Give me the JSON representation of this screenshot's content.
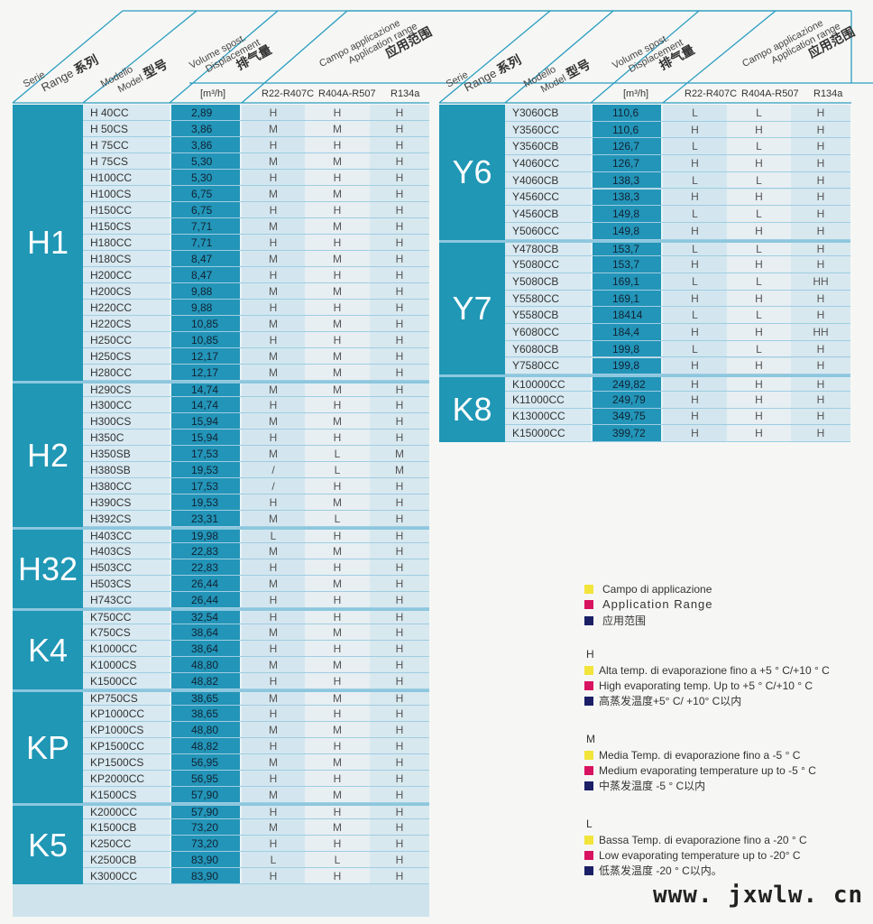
{
  "header": {
    "series": [
      "Serie",
      "Range",
      "系列"
    ],
    "model": [
      "Modello",
      "Model",
      "型号"
    ],
    "displacement": [
      "Volume spost.",
      "Displacement",
      "排气量"
    ],
    "application": [
      "Campo applicazione",
      "Application range",
      "应用范围"
    ],
    "unit": "[m³/h]",
    "refrigerants": [
      "R22-R407C",
      "R404A-R507",
      "R134a"
    ]
  },
  "left_table": [
    {
      "series": "H1",
      "rows": [
        [
          "H 40CC",
          "2,89",
          "H",
          "H",
          "H"
        ],
        [
          "H 50CS",
          "3,86",
          "M",
          "M",
          "H"
        ],
        [
          "H 75CC",
          "3,86",
          "H",
          "H",
          "H"
        ],
        [
          "H 75CS",
          "5,30",
          "M",
          "M",
          "H"
        ],
        [
          "H100CC",
          "5,30",
          "H",
          "H",
          "H"
        ],
        [
          "H100CS",
          "6,75",
          "M",
          "M",
          "H"
        ],
        [
          "H150CC",
          "6,75",
          "H",
          "H",
          "H"
        ],
        [
          "H150CS",
          "7,71",
          "M",
          "M",
          "H"
        ],
        [
          "H180CC",
          "7,71",
          "H",
          "H",
          "H"
        ],
        [
          "H180CS",
          "8,47",
          "M",
          "M",
          "H"
        ],
        [
          "H200CC",
          "8,47",
          "H",
          "H",
          "H"
        ],
        [
          "H200CS",
          "9,88",
          "M",
          "M",
          "H"
        ],
        [
          "H220CC",
          "9,88",
          "H",
          "H",
          "H"
        ],
        [
          "H220CS",
          "10,85",
          "M",
          "M",
          "H"
        ],
        [
          "H250CC",
          "10,85",
          "H",
          "H",
          "H"
        ],
        [
          "H250CS",
          "12,17",
          "M",
          "M",
          "H"
        ],
        [
          "H280CC",
          "12,17",
          "M",
          "M",
          "H"
        ]
      ]
    },
    {
      "series": "H2",
      "rows": [
        [
          "H290CS",
          "14,74",
          "M",
          "M",
          "H"
        ],
        [
          "H300CC",
          "14,74",
          "H",
          "H",
          "H"
        ],
        [
          "H300CS",
          "15,94",
          "M",
          "M",
          "H"
        ],
        [
          "H350C",
          "15,94",
          "H",
          "H",
          "H"
        ],
        [
          "H350SB",
          "17,53",
          "M",
          "L",
          "M"
        ],
        [
          "H380SB",
          "19,53",
          "/",
          "L",
          "M"
        ],
        [
          "H380CC",
          "17,53",
          "/",
          "H",
          "H"
        ],
        [
          "H390CS",
          "19,53",
          "H",
          "M",
          "H"
        ],
        [
          "H392CS",
          "23,31",
          "M",
          "L",
          "H"
        ]
      ]
    },
    {
      "series": "H32",
      "rows": [
        [
          "H403CC",
          "19,98",
          "L",
          "H",
          "H"
        ],
        [
          "H403CS",
          "22,83",
          "M",
          "M",
          "H"
        ],
        [
          "H503CC",
          "22,83",
          "H",
          "H",
          "H"
        ],
        [
          "H503CS",
          "26,44",
          "M",
          "M",
          "H"
        ],
        [
          "H743CC",
          "26,44",
          "H",
          "H",
          "H"
        ]
      ]
    },
    {
      "series": "K4",
      "rows": [
        [
          "K750CC",
          "32,54",
          "H",
          "H",
          "H"
        ],
        [
          "K750CS",
          "38,64",
          "M",
          "M",
          "H"
        ],
        [
          "K1000CC",
          "38,64",
          "H",
          "H",
          "H"
        ],
        [
          "K1000CS",
          "48,80",
          "M",
          "M",
          "H"
        ],
        [
          "K1500CC",
          "48,82",
          "H",
          "H",
          "H"
        ]
      ]
    },
    {
      "series": "KP",
      "rows": [
        [
          "KP750CS",
          "38,65",
          "M",
          "M",
          "H"
        ],
        [
          "KP1000CC",
          "38,65",
          "H",
          "H",
          "H"
        ],
        [
          "KP1000CS",
          "48,80",
          "M",
          "M",
          "H"
        ],
        [
          "KP1500CC",
          "48,82",
          "H",
          "H",
          "H"
        ],
        [
          "KP1500CS",
          "56,95",
          "M",
          "M",
          "H"
        ],
        [
          "KP2000CC",
          "56,95",
          "H",
          "H",
          "H"
        ],
        [
          "K1500CS",
          "57,90",
          "M",
          "M",
          "H"
        ]
      ]
    },
    {
      "series": "K5",
      "rows": [
        [
          "K2000CC",
          "57,90",
          "H",
          "H",
          "H"
        ],
        [
          "K1500CB",
          "73,20",
          "M",
          "M",
          "H"
        ],
        [
          "K250CC",
          "73,20",
          "H",
          "H",
          "H"
        ],
        [
          "K2500CB",
          "83,90",
          "L",
          "L",
          "H"
        ],
        [
          "K3000CC",
          "83,90",
          "H",
          "H",
          "H"
        ]
      ]
    }
  ],
  "right_table": [
    {
      "series": "Y6",
      "rows": [
        [
          "Y3060CB",
          "110,6",
          "L",
          "L",
          "H"
        ],
        [
          "Y3560CC",
          "110,6",
          "H",
          "H",
          "H"
        ],
        [
          "Y3560CB",
          "126,7",
          "L",
          "L",
          "H"
        ],
        [
          "Y4060CC",
          "126,7",
          "H",
          "H",
          "H"
        ],
        [
          "Y4060CB",
          "138,3",
          "L",
          "L",
          "H"
        ],
        [
          "Y4560CC",
          "138,3",
          "H",
          "H",
          "H"
        ],
        [
          "Y4560CB",
          "149,8",
          "L",
          "L",
          "H"
        ],
        [
          "Y5060CC",
          "149,8",
          "H",
          "H",
          "H"
        ]
      ]
    },
    {
      "series": "Y7",
      "rows": [
        [
          "Y4780CB",
          "153,7",
          "L",
          "L",
          "H"
        ],
        [
          "Y5080CC",
          "153,7",
          "H",
          "H",
          "H"
        ],
        [
          "Y5080CB",
          "169,1",
          "L",
          "L",
          "HH"
        ],
        [
          "Y5580CC",
          "169,1",
          "H",
          "H",
          "H"
        ],
        [
          "Y5580CB",
          "18414",
          "L",
          "L",
          "H"
        ],
        [
          "Y6080CC",
          "184,4",
          "H",
          "H",
          "HH"
        ],
        [
          "Y6080CB",
          "199,8",
          "L",
          "L",
          "H"
        ],
        [
          "Y7580CC",
          "199,8",
          "H",
          "H",
          "H"
        ]
      ]
    },
    {
      "series": "K8",
      "rows": [
        [
          "K10000CC",
          "249,82",
          "H",
          "H",
          "H"
        ],
        [
          "K11000CC",
          "249,79",
          "H",
          "H",
          "H"
        ],
        [
          "K13000CC",
          "349,75",
          "H",
          "H",
          "H"
        ],
        [
          "K15000CC",
          "399,72",
          "H",
          "H",
          "H"
        ]
      ]
    }
  ],
  "legend": {
    "colors": {
      "it": "#f2e43a",
      "en": "#d8135f",
      "cn": "#1a1f66"
    },
    "title": [
      "Campo di applicazione",
      "Application  Range",
      "应用范围"
    ],
    "groups": [
      {
        "code": "H",
        "lines": [
          "Alta temp. di evaporazione fino a +5 ° C/+10 ° C",
          "High evaporating temp. Up to +5 ° C/+10 ° C",
          "高蒸发温度+5° C/ +10° C以内"
        ]
      },
      {
        "code": "M",
        "lines": [
          "Media Temp. di evaporazione fino a -5 ° C",
          "Medium evaporating temperature up to -5 °  C",
          "中蒸发温度 -5 ° C以内"
        ]
      },
      {
        "code": "L",
        "lines": [
          "Bassa Temp. di evaporazione fino a -20 ° C",
          "Low evaporating temperature up to -20°  C",
          "低蒸发温度 -20 ° C以内。"
        ]
      }
    ]
  },
  "watermark": "www. jxwlw. cn"
}
